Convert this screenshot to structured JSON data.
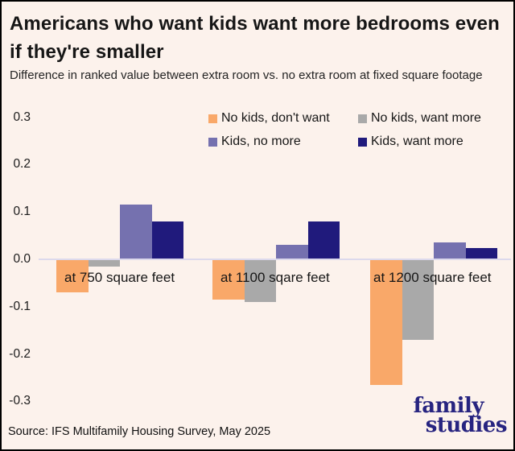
{
  "header": {
    "title": "Americans who want kids want more bedrooms even if they're smaller",
    "subtitle": "Difference in ranked value between extra room vs. no extra room at fixed square footage"
  },
  "chart_data": {
    "type": "bar",
    "categories": [
      "at 750 square feet",
      "at 1100 sqare feet",
      "at 1200 square feet"
    ],
    "series": [
      {
        "name": "No kids, don't want",
        "color": "#f9a869",
        "values": [
          -0.07,
          -0.085,
          -0.265
        ]
      },
      {
        "name": "No kids, want more",
        "color": "#a9a9a9",
        "values": [
          -0.015,
          -0.09,
          -0.17
        ]
      },
      {
        "name": "Kids, no more",
        "color": "#7571af",
        "values": [
          0.115,
          0.03,
          0.035
        ]
      },
      {
        "name": "Kids, want more",
        "color": "#201a7c",
        "values": [
          0.08,
          0.08,
          0.023
        ]
      }
    ],
    "ylim": [
      -0.3,
      0.3
    ],
    "yticks": [
      "0.3",
      "0.2",
      "0.1",
      "0.0",
      "-0.1",
      "-0.2",
      "-0.3"
    ],
    "grid": false,
    "legend_position": "top-center",
    "axis_line_color": "#dcd9ec",
    "background_color": "#fcf2ec"
  },
  "footer": {
    "source": "Source: IFS Multifamily Housing Survey, May 2025",
    "logo": {
      "line1": "family",
      "line2": "studies",
      "color": "#272480"
    }
  }
}
